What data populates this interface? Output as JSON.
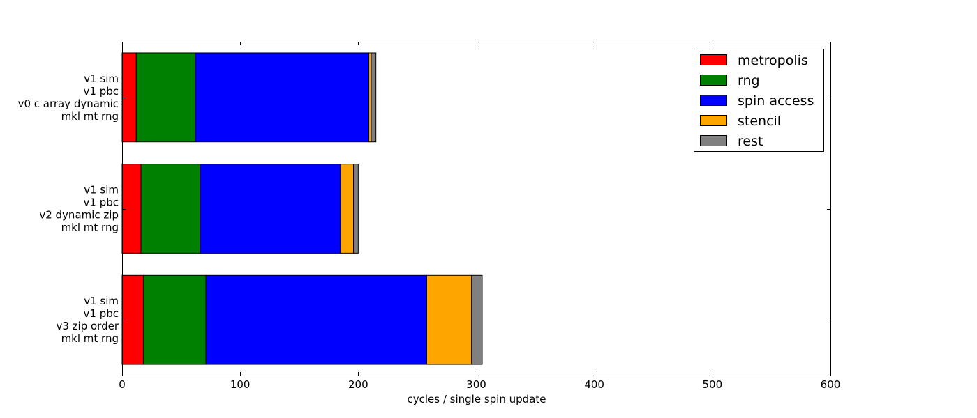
{
  "chart_data": {
    "type": "bar",
    "orientation": "horizontal",
    "stacked": true,
    "title": "",
    "xlabel": "cycles / single spin update",
    "ylabel": "",
    "xlim": [
      0,
      600
    ],
    "xticks": [
      0,
      100,
      200,
      300,
      400,
      500,
      600
    ],
    "grid": false,
    "legend_position": "top-right",
    "categories": [
      [
        "v1 sim",
        "v1 pbc",
        "v0 c array dynamic",
        "mkl mt rng"
      ],
      [
        "v1 sim",
        "v1 pbc",
        "v2 dynamic zip",
        "mkl mt rng"
      ],
      [
        "v1 sim",
        "v1 pbc",
        "v3 zip order",
        "mkl mt rng"
      ]
    ],
    "series": [
      {
        "name": "metropolis",
        "color": "#ff0000",
        "values": [
          12,
          16,
          18
        ]
      },
      {
        "name": "rng",
        "color": "#008000",
        "values": [
          50,
          50,
          53
        ]
      },
      {
        "name": "spin access",
        "color": "#0000ff",
        "values": [
          147,
          119,
          187
        ]
      },
      {
        "name": "stencil",
        "color": "#ffa500",
        "values": [
          2,
          11,
          38
        ]
      },
      {
        "name": "rest",
        "color": "#808080",
        "values": [
          4,
          4,
          9
        ]
      }
    ]
  }
}
